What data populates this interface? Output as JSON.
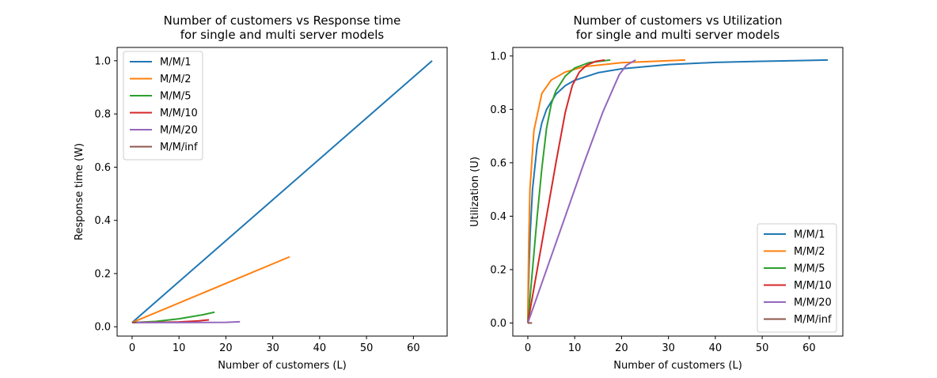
{
  "chart_data": [
    {
      "type": "line",
      "title_lines": [
        "Number of customers vs Response time",
        "for single and multi server models"
      ],
      "xlabel": "Number of customers (L)",
      "ylabel": "Response time (W)",
      "xlim": [
        -3.2,
        67.2
      ],
      "ylim": [
        -0.035,
        1.05
      ],
      "xticks": [
        0,
        10,
        20,
        30,
        40,
        50,
        60
      ],
      "xtick_labels": [
        "0",
        "10",
        "20",
        "30",
        "40",
        "50",
        "60"
      ],
      "yticks": [
        0.0,
        0.2,
        0.4,
        0.6,
        0.8,
        1.0
      ],
      "ytick_labels": [
        "0.0",
        "0.2",
        "0.4",
        "0.6",
        "0.8",
        "1.0"
      ],
      "grid": false,
      "legend": "upper-left",
      "series": [
        {
          "name": "M/M/1",
          "color": "#1f77b4",
          "x": [
            0,
            64
          ],
          "y": [
            0.016,
            1.0
          ]
        },
        {
          "name": "M/M/2",
          "color": "#ff7f0e",
          "x": [
            0,
            33.6
          ],
          "y": [
            0.016,
            0.263
          ]
        },
        {
          "name": "M/M/5",
          "color": "#2ca02c",
          "x": [
            0,
            5,
            10,
            15,
            17.6
          ],
          "y": [
            0.016,
            0.02,
            0.03,
            0.045,
            0.055
          ]
        },
        {
          "name": "M/M/10",
          "color": "#d62728",
          "x": [
            0,
            5,
            10,
            14,
            16.4
          ],
          "y": [
            0.016,
            0.0165,
            0.018,
            0.022,
            0.026
          ]
        },
        {
          "name": "M/M/20",
          "color": "#9467bd",
          "x": [
            0,
            10,
            20,
            23
          ],
          "y": [
            0.016,
            0.016,
            0.0165,
            0.019
          ]
        },
        {
          "name": "M/M/inf",
          "color": "#8c564b",
          "x": [
            0,
            0.9
          ],
          "y": [
            0.016,
            0.016
          ]
        }
      ]
    },
    {
      "type": "line",
      "title_lines": [
        "Number of customers vs Utilization",
        "for single and multi server models"
      ],
      "xlabel": "Number of customers (L)",
      "ylabel": "Utilization (U)",
      "xlim": [
        -3.2,
        67.2
      ],
      "ylim": [
        -0.049,
        1.032
      ],
      "xticks": [
        0,
        10,
        20,
        30,
        40,
        50,
        60
      ],
      "xtick_labels": [
        "0",
        "10",
        "20",
        "30",
        "40",
        "50",
        "60"
      ],
      "yticks": [
        0.0,
        0.2,
        0.4,
        0.6,
        0.8,
        1.0
      ],
      "ytick_labels": [
        "0.0",
        "0.2",
        "0.4",
        "0.6",
        "0.8",
        "1.0"
      ],
      "grid": false,
      "legend": "lower-right",
      "series": [
        {
          "name": "M/M/1",
          "color": "#1f77b4",
          "x": [
            0,
            0.1,
            0.25,
            0.5,
            1,
            2,
            3,
            4,
            6,
            8,
            10,
            15,
            20,
            30,
            40,
            50,
            64
          ],
          "y": [
            0,
            0.09,
            0.2,
            0.333,
            0.5,
            0.667,
            0.75,
            0.8,
            0.857,
            0.889,
            0.909,
            0.9375,
            0.952,
            0.968,
            0.976,
            0.98,
            0.985
          ]
        },
        {
          "name": "M/M/2",
          "color": "#ff7f0e",
          "x": [
            0,
            0.05,
            0.2,
            0.45,
            1.3,
            3,
            5,
            8,
            12,
            20,
            33.6
          ],
          "y": [
            0,
            0.1,
            0.3,
            0.5,
            0.72,
            0.86,
            0.91,
            0.94,
            0.96,
            0.975,
            0.985
          ]
        },
        {
          "name": "M/M/5",
          "color": "#2ca02c",
          "x": [
            0,
            1,
            2,
            3,
            4,
            5,
            6,
            8,
            10,
            13,
            17.6
          ],
          "y": [
            0,
            0.2,
            0.4,
            0.58,
            0.73,
            0.82,
            0.87,
            0.925,
            0.955,
            0.975,
            0.985
          ]
        },
        {
          "name": "M/M/10",
          "color": "#d62728",
          "x": [
            0,
            2,
            4,
            6,
            8,
            9.5,
            11,
            12.5,
            14.5,
            16.4
          ],
          "y": [
            0,
            0.2,
            0.4,
            0.6,
            0.79,
            0.89,
            0.94,
            0.965,
            0.98,
            0.985
          ]
        },
        {
          "name": "M/M/20",
          "color": "#9467bd",
          "x": [
            0,
            4,
            8,
            12,
            16,
            18,
            19.5,
            21,
            23
          ],
          "y": [
            0,
            0.2,
            0.4,
            0.6,
            0.79,
            0.87,
            0.93,
            0.965,
            0.985
          ]
        },
        {
          "name": "M/M/inf",
          "color": "#8c564b",
          "x": [
            0,
            0.9
          ],
          "y": [
            0,
            0
          ]
        }
      ]
    }
  ]
}
